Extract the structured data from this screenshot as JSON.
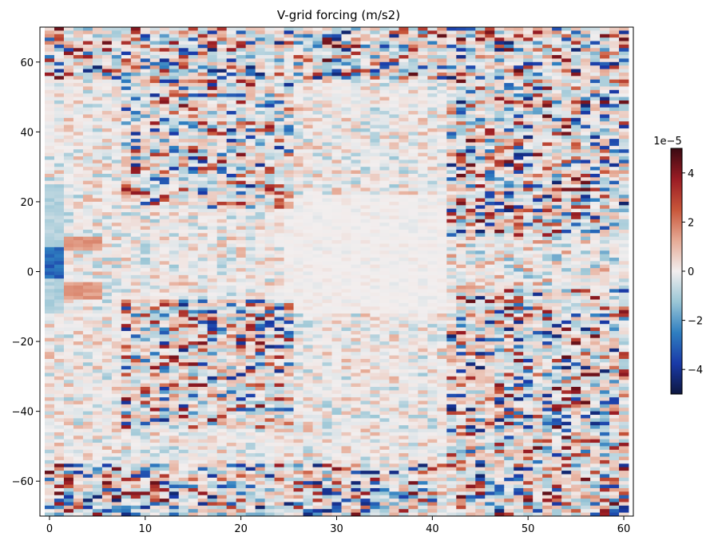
{
  "chart_data": {
    "type": "heatmap",
    "title": "V-grid forcing (m/s2)",
    "xlabel": "",
    "ylabel": "",
    "xlim": [
      -1,
      61
    ],
    "ylim": [
      -70,
      70
    ],
    "x_ticks": [
      "0",
      "10",
      "20",
      "30",
      "40",
      "50",
      "60"
    ],
    "y_ticks": [
      "60",
      "40",
      "20",
      "0",
      "−20",
      "−40",
      "−60"
    ],
    "grid": "off",
    "legend": "none",
    "colorbar": {
      "label": "",
      "scale_text": "1e−5",
      "range": [
        -5,
        5
      ],
      "ticks": [
        "4",
        "2",
        "0",
        "−2",
        "−4"
      ],
      "placement": "right",
      "colormap": [
        "#0d1740",
        "#1a3aa8",
        "#2f7fc0",
        "#9ac6d6",
        "#f2eeee",
        "#e6aa95",
        "#c8563a",
        "#9a1c24",
        "#3a0a12"
      ]
    },
    "grid_shape": {
      "columns": 61,
      "rows": 140
    },
    "pattern_summary": "Noise-like field of alternating red/blue bands; strongest magnitudes near x 10-25 and 42-60 at latitudes 20-65 and -10 to -40; near-zero values (white) in center region x 25-40, latitude -10 to 20; strong negative patch near x=0-1 at latitude 0-5; strong positive patch x 2-5 at latitude 8 and -5."
  }
}
